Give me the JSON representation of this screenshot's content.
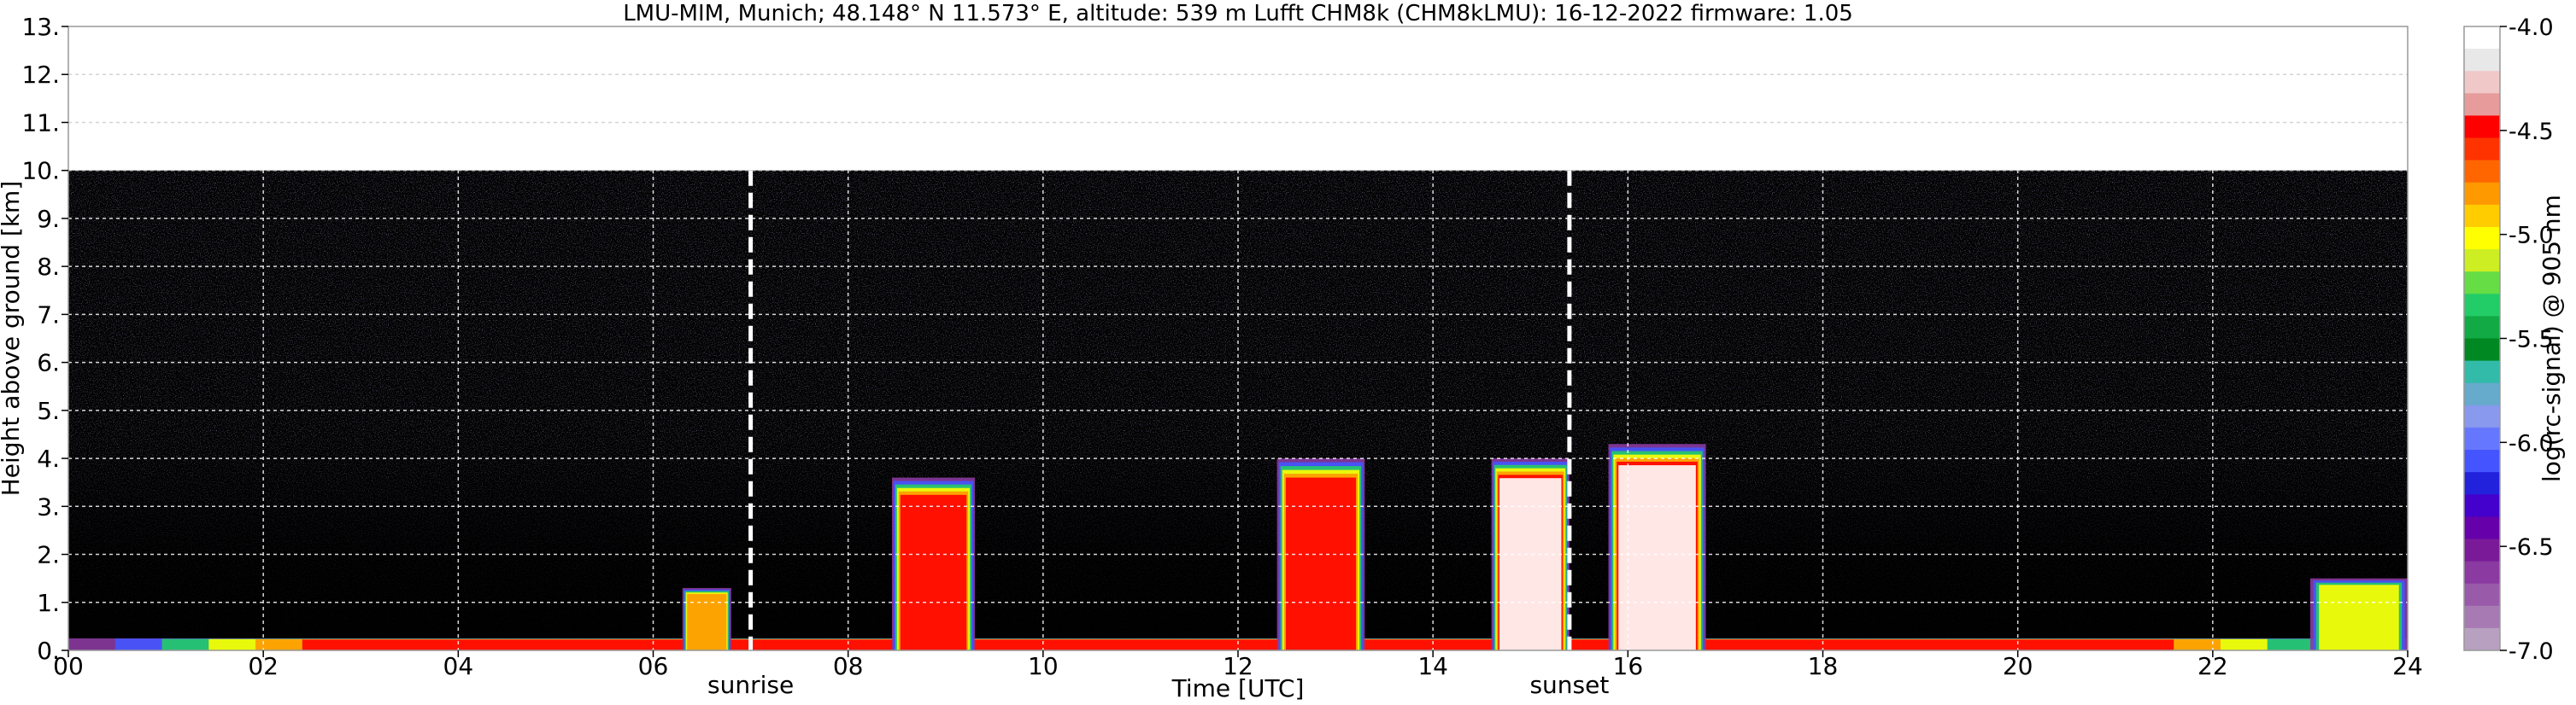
{
  "chart_data": {
    "type": "heatmap",
    "title": "LMU-MIM, Munich; 48.148° N 11.573° E, altitude: 539 m    Lufft CHM8k (CHM8kLMU): 16-12-2022    firmware: 1.05",
    "xlabel": "Time [UTC]",
    "ylabel": "Height above ground [km]",
    "xlim": [
      0,
      24
    ],
    "ylim": [
      0,
      13
    ],
    "x_ticks": [
      0,
      2,
      4,
      6,
      8,
      10,
      12,
      14,
      16,
      18,
      20,
      22,
      24
    ],
    "x_tick_labels": [
      "00",
      "02",
      "04",
      "06",
      "08",
      "10",
      "12",
      "14",
      "16",
      "18",
      "20",
      "22",
      "24"
    ],
    "y_ticks": [
      0,
      1,
      2,
      3,
      4,
      5,
      6,
      7,
      8,
      9,
      10,
      11,
      12,
      13
    ],
    "y_tick_labels": [
      "0.",
      "1.",
      "2.",
      "3.",
      "4.",
      "5.",
      "6.",
      "7.",
      "8.",
      "9.",
      "10.",
      "11.",
      "12.",
      "13."
    ],
    "grid": true,
    "data_ceiling_km": 10,
    "annotations": [
      {
        "x": 7.0,
        "label": "sunrise",
        "style": "dashed-white-line"
      },
      {
        "x": 15.4,
        "label": "sunset",
        "style": "dashed-white-line"
      }
    ],
    "colorbar": {
      "label": "log(rc-signal) @ 905 nm",
      "range": [
        -7.0,
        -4.0
      ],
      "ticks": [
        -4.0,
        -4.5,
        -5.0,
        -5.5,
        -6.0,
        -6.5,
        -7.0
      ],
      "tick_labels": [
        "-4.0",
        "-4.5",
        "-5.0",
        "-5.5",
        "-6.0",
        "-6.5",
        "-7.0"
      ],
      "colors": [
        "#ffffff",
        "#e8e8e8",
        "#f0c8c8",
        "#e89b9b",
        "#ff0000",
        "#ff3300",
        "#ff6600",
        "#ff9900",
        "#ffcc00",
        "#ffff00",
        "#ccee22",
        "#66dd44",
        "#22cc66",
        "#11aa44",
        "#008822",
        "#33bbaa",
        "#66aacc",
        "#8899ee",
        "#6677ff",
        "#4455ff",
        "#2222dd",
        "#4400cc",
        "#6600aa",
        "#7a1a99",
        "#8a3aa0",
        "#9a5aaa",
        "#a87ab4",
        "#b8a0c0"
      ],
      "high_signal_color": "#ffffff",
      "background_color": "#000000"
    },
    "signal_features": [
      {
        "name": "surface layer",
        "x_start": 0.0,
        "x_end": 24.0,
        "top_km": 0.25,
        "intensity": 0.8
      },
      {
        "name": "boundary layer 23-24h",
        "x_start": 23.0,
        "x_end": 24.0,
        "top_km": 1.5,
        "intensity": 0.6
      },
      {
        "name": "aerosol 06h",
        "x_start": 6.3,
        "x_end": 6.8,
        "top_km": 1.3,
        "intensity": 0.7
      },
      {
        "name": "cloud 08-09h",
        "x_start": 8.45,
        "x_end": 9.3,
        "top_km": 3.6,
        "intensity": 0.85
      },
      {
        "name": "cloud 12-13h",
        "x_start": 12.4,
        "x_end": 13.3,
        "top_km": 4.0,
        "intensity": 0.9
      },
      {
        "name": "cloud 14-15h",
        "x_start": 14.6,
        "x_end": 15.4,
        "top_km": 4.0,
        "intensity": 1.0
      },
      {
        "name": "cloud 16h",
        "x_start": 15.8,
        "x_end": 16.8,
        "top_km": 4.3,
        "intensity": 0.95
      }
    ]
  }
}
